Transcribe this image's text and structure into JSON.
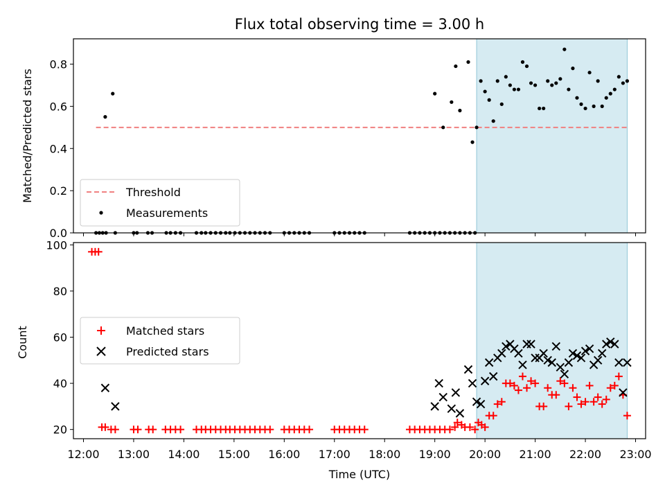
{
  "title": "Flux total observing time = 3.00 h",
  "chart_data": [
    {
      "type": "scatter",
      "ylabel": "Matched/Predicted stars",
      "xlim": [
        "11:48",
        "23:12"
      ],
      "ylim": [
        0,
        0.92
      ],
      "yticks": [
        "0.0",
        "0.2",
        "0.4",
        "0.6",
        "0.8"
      ],
      "grid": false,
      "legend_position": "lower-left",
      "shaded_span": {
        "x": [
          "19:50",
          "22:50"
        ],
        "color": "#add8e6"
      },
      "threshold": {
        "name": "Threshold",
        "y": 0.5,
        "x": [
          "12:15",
          "22:50"
        ],
        "color": "#f08080",
        "style": "dashed"
      },
      "series": [
        {
          "name": "Measurements",
          "color": "#000000",
          "x": [
            "12:15",
            "12:19",
            "12:23",
            "12:27",
            "12:38",
            "13:00",
            "13:04",
            "13:17",
            "13:22",
            "13:39",
            "13:44",
            "13:50",
            "13:56",
            "14:15",
            "14:21",
            "14:26",
            "14:32",
            "14:38",
            "14:44",
            "14:50",
            "14:55",
            "15:01",
            "15:07",
            "15:13",
            "15:19",
            "15:25",
            "15:31",
            "15:37",
            "15:43",
            "16:00",
            "16:06",
            "16:12",
            "16:18",
            "16:24",
            "16:30",
            "17:00",
            "17:06",
            "17:12",
            "17:18",
            "17:24",
            "17:30",
            "17:36",
            "18:30",
            "18:36",
            "18:42",
            "18:48",
            "18:54",
            "19:00",
            "19:06",
            "19:12",
            "19:18",
            "19:24",
            "19:30",
            "19:36",
            "19:42",
            "19:48",
            "12:26",
            "12:35",
            "19:00",
            "19:10",
            "19:20",
            "19:25",
            "19:30",
            "19:40",
            "19:45",
            "19:50",
            "19:55",
            "20:00",
            "20:05",
            "20:10",
            "20:15",
            "20:20",
            "20:25",
            "20:30",
            "20:35",
            "20:40",
            "20:45",
            "20:50",
            "20:55",
            "21:00",
            "21:05",
            "21:10",
            "21:15",
            "21:20",
            "21:25",
            "21:30",
            "21:35",
            "21:40",
            "21:45",
            "21:50",
            "21:55",
            "22:00",
            "22:05",
            "22:10",
            "22:15",
            "22:20",
            "22:25",
            "22:30",
            "22:35",
            "22:40",
            "22:45",
            "22:50"
          ],
          "y": [
            0,
            0,
            0,
            0,
            0,
            0,
            0,
            0,
            0,
            0,
            0,
            0,
            0,
            0,
            0,
            0,
            0,
            0,
            0,
            0,
            0,
            0,
            0,
            0,
            0,
            0,
            0,
            0,
            0,
            0,
            0,
            0,
            0,
            0,
            0,
            0,
            0,
            0,
            0,
            0,
            0,
            0,
            0,
            0,
            0,
            0,
            0,
            0,
            0,
            0,
            0,
            0,
            0,
            0,
            0,
            0,
            0.55,
            0.66,
            0.66,
            0.5,
            0.62,
            0.79,
            0.58,
            0.81,
            0.43,
            0.5,
            0.72,
            0.67,
            0.63,
            0.53,
            0.72,
            0.61,
            0.74,
            0.7,
            0.68,
            0.68,
            0.81,
            0.79,
            0.71,
            0.7,
            0.59,
            0.59,
            0.72,
            0.7,
            0.71,
            0.73,
            0.87,
            0.68,
            0.78,
            0.64,
            0.61,
            0.59,
            0.76,
            0.6,
            0.72,
            0.6,
            0.64,
            0.66,
            0.68,
            0.74,
            0.71,
            0.72
          ]
        }
      ]
    },
    {
      "type": "scatter",
      "ylabel": "Count",
      "xlabel": "Time (UTC)",
      "xlim": [
        "11:48",
        "23:12"
      ],
      "ylim": [
        16,
        101
      ],
      "yticks": [
        "20",
        "40",
        "60",
        "80",
        "100"
      ],
      "xticks": [
        "12:00",
        "13:00",
        "14:00",
        "15:00",
        "16:00",
        "17:00",
        "18:00",
        "19:00",
        "20:00",
        "21:00",
        "22:00",
        "23:00"
      ],
      "grid": false,
      "legend_position": "center-left",
      "shaded_span": {
        "x": [
          "19:50",
          "22:50"
        ],
        "color": "#add8e6"
      },
      "series": [
        {
          "name": "Matched stars",
          "marker": "plus",
          "color": "#ff0000",
          "x": [
            "12:10",
            "12:14",
            "12:18",
            "12:22",
            "12:26",
            "12:33",
            "12:38",
            "13:00",
            "13:05",
            "13:18",
            "13:23",
            "13:38",
            "13:44",
            "13:50",
            "13:56",
            "14:15",
            "14:21",
            "14:26",
            "14:32",
            "14:38",
            "14:44",
            "14:50",
            "14:55",
            "15:01",
            "15:07",
            "15:13",
            "15:19",
            "15:25",
            "15:31",
            "15:37",
            "15:43",
            "16:00",
            "16:06",
            "16:12",
            "16:18",
            "16:24",
            "16:30",
            "17:00",
            "17:06",
            "17:12",
            "17:18",
            "17:24",
            "17:30",
            "17:36",
            "18:30",
            "18:36",
            "18:42",
            "18:48",
            "18:54",
            "19:00",
            "19:06",
            "19:12",
            "19:18",
            "19:24",
            "19:27",
            "19:32",
            "19:36",
            "19:42",
            "19:48",
            "19:52",
            "19:56",
            "20:00",
            "20:05",
            "20:10",
            "20:15",
            "20:20",
            "20:25",
            "20:30",
            "20:35",
            "20:40",
            "20:45",
            "20:50",
            "20:55",
            "21:00",
            "21:05",
            "21:10",
            "21:15",
            "21:20",
            "21:25",
            "21:30",
            "21:35",
            "21:40",
            "21:45",
            "21:50",
            "21:55",
            "22:00",
            "22:05",
            "22:10",
            "22:15",
            "22:20",
            "22:25",
            "22:30",
            "22:35",
            "22:40",
            "22:45",
            "22:50"
          ],
          "y": [
            97,
            97,
            97,
            21,
            21,
            20,
            20,
            20,
            20,
            20,
            20,
            20,
            20,
            20,
            20,
            20,
            20,
            20,
            20,
            20,
            20,
            20,
            20,
            20,
            20,
            20,
            20,
            20,
            20,
            20,
            20,
            20,
            20,
            20,
            20,
            20,
            20,
            20,
            20,
            20,
            20,
            20,
            20,
            20,
            20,
            20,
            20,
            20,
            20,
            20,
            20,
            20,
            20,
            21,
            23,
            22,
            21,
            21,
            20,
            23,
            22,
            21,
            26,
            26,
            31,
            32,
            40,
            40,
            39,
            37,
            43,
            38,
            41,
            40,
            30,
            30,
            38,
            35,
            35,
            41,
            40,
            30,
            38,
            34,
            31,
            32,
            39,
            32,
            34,
            31,
            33,
            38,
            39,
            43,
            35,
            26
          ]
        },
        {
          "name": "Predicted stars",
          "marker": "x",
          "color": "#000000",
          "x": [
            "12:26",
            "12:38",
            "19:00",
            "19:05",
            "19:10",
            "19:20",
            "19:25",
            "19:30",
            "19:40",
            "19:45",
            "19:50",
            "19:55",
            "20:00",
            "20:05",
            "20:10",
            "20:15",
            "20:20",
            "20:25",
            "20:30",
            "20:35",
            "20:40",
            "20:45",
            "20:50",
            "20:55",
            "21:00",
            "21:05",
            "21:10",
            "21:15",
            "21:20",
            "21:25",
            "21:30",
            "21:35",
            "21:40",
            "21:45",
            "21:50",
            "21:55",
            "22:00",
            "22:05",
            "22:10",
            "22:15",
            "22:20",
            "22:25",
            "22:30",
            "22:35",
            "22:40",
            "22:45",
            "22:50"
          ],
          "y": [
            38,
            30,
            30,
            40,
            34,
            29,
            36,
            27,
            46,
            40,
            32,
            31,
            41,
            49,
            43,
            51,
            53,
            56,
            57,
            55,
            53,
            48,
            57,
            57,
            51,
            51,
            53,
            50,
            49,
            56,
            47,
            44,
            49,
            53,
            52,
            51,
            54,
            55,
            48,
            50,
            53,
            57,
            58,
            57,
            49,
            36,
            49
          ]
        }
      ]
    }
  ]
}
